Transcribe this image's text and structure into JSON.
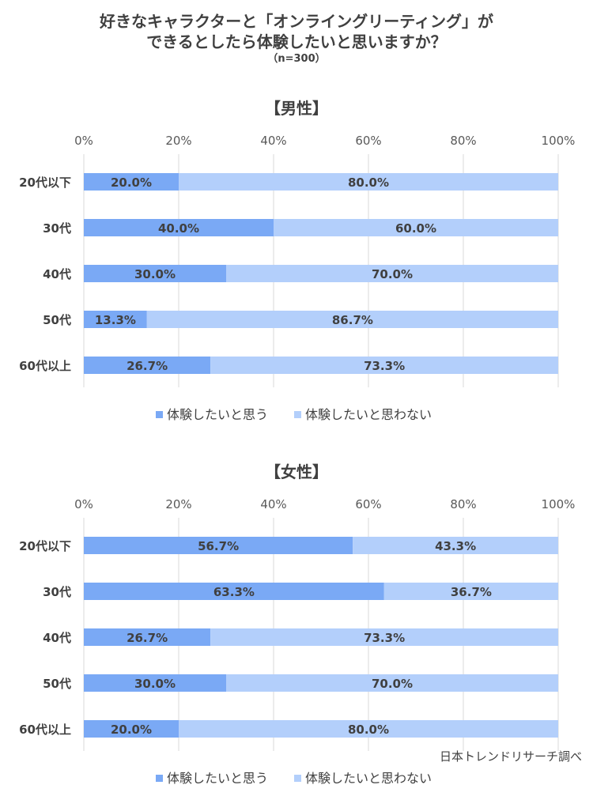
{
  "title": {
    "line1": "好きなキャラクターと「オンライングリーティング」が",
    "line2": "できるとしたら体験したいと思いますか？",
    "sample": "（n=300）"
  },
  "source": "日本トレンドリサーチ調べ",
  "colors": {
    "yes": "#7aa9f5",
    "no": "#b3cffb",
    "grid": "#d9d9d9"
  },
  "chart_data": [
    {
      "type": "bar",
      "orientation": "horizontal",
      "stacked": true,
      "title": "【男性】",
      "categories": [
        "20代以下",
        "30代",
        "40代",
        "50代",
        "60代以上"
      ],
      "series": [
        {
          "name": "体験したいと思う",
          "values": [
            20.0,
            40.0,
            30.0,
            13.3,
            26.7
          ]
        },
        {
          "name": "体験したいと思わない",
          "values": [
            80.0,
            60.0,
            70.0,
            86.7,
            73.3
          ]
        }
      ],
      "data_labels": [
        [
          "20.0%",
          "40.0%",
          "30.0%",
          "13.3%",
          "26.7%"
        ],
        [
          "80.0%",
          "60.0%",
          "70.0%",
          "86.7%",
          "73.3%"
        ]
      ],
      "xlim": [
        0,
        100
      ],
      "xticks": [
        "0%",
        "20%",
        "40%",
        "60%",
        "80%",
        "100%"
      ],
      "grid": true,
      "legend": "bottom"
    },
    {
      "type": "bar",
      "orientation": "horizontal",
      "stacked": true,
      "title": "【女性】",
      "categories": [
        "20代以下",
        "30代",
        "40代",
        "50代",
        "60代以上"
      ],
      "series": [
        {
          "name": "体験したいと思う",
          "values": [
            56.7,
            63.3,
            26.7,
            30.0,
            20.0
          ]
        },
        {
          "name": "体験したいと思わない",
          "values": [
            43.3,
            36.7,
            73.3,
            70.0,
            80.0
          ]
        }
      ],
      "data_labels": [
        [
          "56.7%",
          "63.3%",
          "26.7%",
          "30.0%",
          "20.0%"
        ],
        [
          "43.3%",
          "36.7%",
          "73.3%",
          "70.0%",
          "80.0%"
        ]
      ],
      "xlim": [
        0,
        100
      ],
      "xticks": [
        "0%",
        "20%",
        "40%",
        "60%",
        "80%",
        "100%"
      ],
      "grid": true,
      "legend": "bottom"
    }
  ]
}
